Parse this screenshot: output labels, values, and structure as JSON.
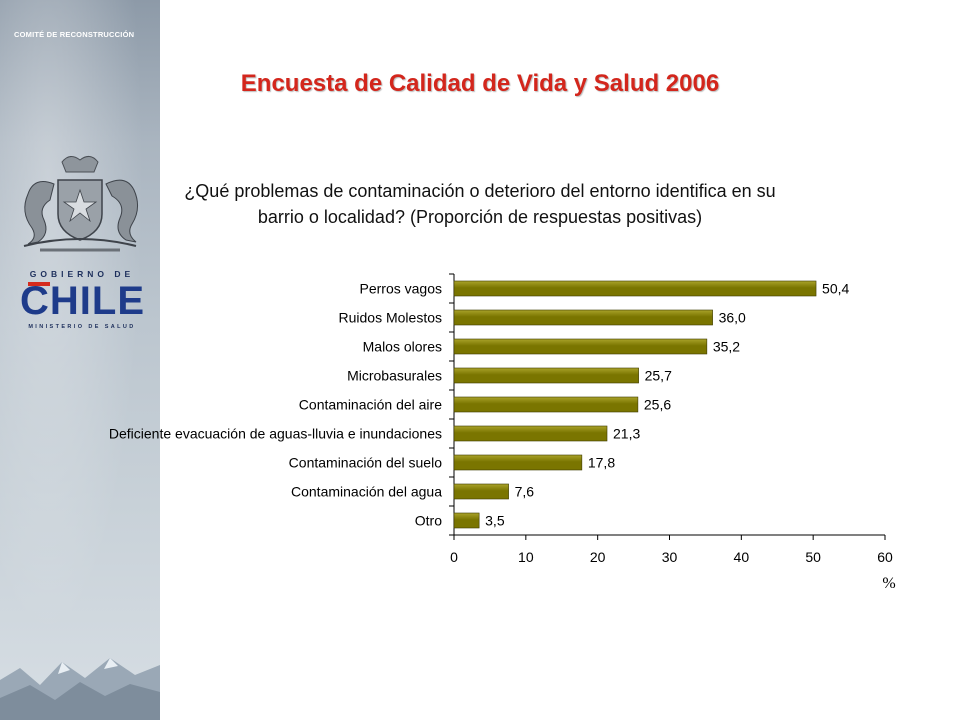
{
  "slide": {
    "committee": "COMITÉ DE RECONSTRUCCIÓN",
    "title": "Encuesta de Calidad de Vida y Salud 2006"
  },
  "logo": {
    "government": "GOBIERNO DE",
    "country": "CHILE",
    "ministry": "MINISTERIO DE SALUD"
  },
  "colors": {
    "bar": "#7a7500",
    "bar_highlight": "#aaa32a",
    "title": "#d3261c"
  },
  "chart_data": {
    "type": "bar",
    "orientation": "horizontal",
    "title": "¿Qué problemas de contaminación o deterioro del entorno identifica en su barrio o localidad? (Proporción de respuestas positivas)",
    "title_lines": [
      "¿Qué problemas de contaminación o deterioro del entorno identifica en su",
      "barrio o localidad? (Proporción de respuestas positivas)"
    ],
    "categories": [
      "Perros vagos",
      "Ruidos Molestos",
      "Malos olores",
      "Microbasurales",
      "Contaminación del aire",
      "Deficiente evacuación de aguas-lluvia e inundaciones",
      "Contaminación del suelo",
      "Contaminación del agua",
      "Otro"
    ],
    "values": [
      50.4,
      36.0,
      35.2,
      25.7,
      25.6,
      21.3,
      17.8,
      7.6,
      3.5
    ],
    "value_labels": [
      "50,4",
      "36,0",
      "35,2",
      "25,7",
      "25,6",
      "21,3",
      "17,8",
      "7,6",
      "3,5"
    ],
    "xlabel": "%",
    "ylabel": "",
    "xlim": [
      0,
      60
    ],
    "xticks": [
      0,
      10,
      20,
      30,
      40,
      50,
      60
    ],
    "grid": false,
    "legend": "none"
  }
}
